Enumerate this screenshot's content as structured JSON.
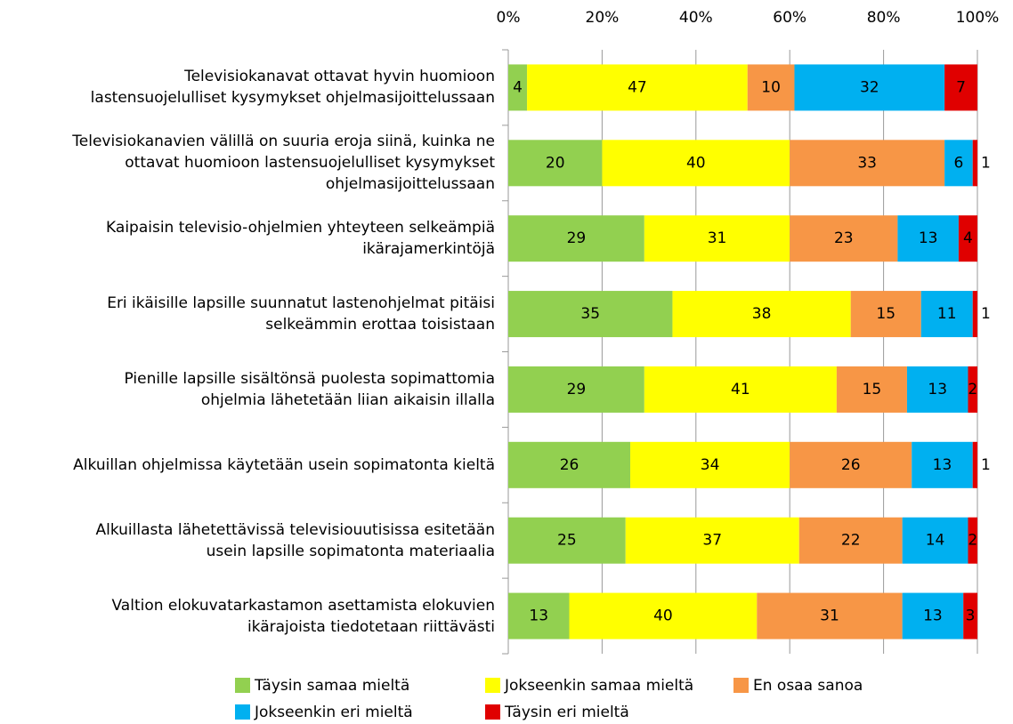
{
  "chart_data": {
    "type": "stacked-barh",
    "categories": [
      "Televisiokanavat ottavat hyvin huomioon\nlastensuojelulliset kysymykset ohjelmasijoittelussaan",
      "Televisiokanavien välillä on suuria eroja siinä, kuinka ne\nottavat huomioon lastensuojelulliset kysymykset\nohjelmasijoittelussaan",
      "Kaipaisin televisio-ohjelmien yhteyteen selkeämpiä\nikärajamerkintöjä",
      "Eri ikäisille lapsille suunnatut lastenohjelmat pitäisi\nselkeämmin erottaa toisistaan",
      "Pienille lapsille sisältönsä puolesta sopimattomia\nohjelmia lähetetään liian aikaisin illalla",
      "Alkuillan ohjelmissa käytetään usein sopimatonta kieltä",
      "Alkuillasta lähetettävissä televisiouutisissa esitetään\nusein lapsille sopimatonta materiaalia",
      "Valtion elokuvatarkastamon asettamista elokuvien\nikärajoista tiedotetaan riittävästi"
    ],
    "series": [
      {
        "name": "Täysin samaa mieltä",
        "color": "#92d050",
        "values": [
          4,
          20,
          29,
          35,
          29,
          26,
          25,
          13
        ]
      },
      {
        "name": "Jokseenkin samaa mieltä",
        "color": "#ffff00",
        "values": [
          47,
          40,
          31,
          38,
          41,
          34,
          37,
          40
        ]
      },
      {
        "name": "En osaa sanoa",
        "color": "#f79646",
        "values": [
          10,
          33,
          23,
          15,
          15,
          26,
          22,
          31
        ]
      },
      {
        "name": "Jokseenkin eri mieltä",
        "color": "#00b0f0",
        "values": [
          32,
          6,
          13,
          11,
          13,
          13,
          14,
          13
        ]
      },
      {
        "name": "Täysin eri mieltä",
        "color": "#e00000",
        "values": [
          7,
          1,
          4,
          1,
          2,
          1,
          2,
          3
        ]
      }
    ],
    "xlim": [
      0,
      100
    ],
    "xticks": [
      {
        "value": 0,
        "label": "0%"
      },
      {
        "value": 20,
        "label": "20%"
      },
      {
        "value": 40,
        "label": "40%"
      },
      {
        "value": 60,
        "label": "60%"
      },
      {
        "value": 80,
        "label": "80%"
      },
      {
        "value": 100,
        "label": "100%"
      }
    ],
    "grid": true,
    "legend": "bottom"
  }
}
